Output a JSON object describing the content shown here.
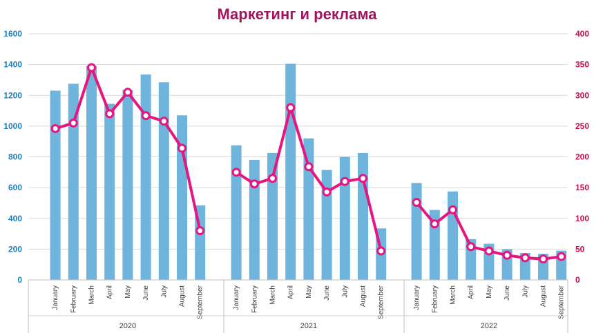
{
  "chart_data": {
    "type": "bar+line",
    "title": "Маркетинг и реклама",
    "colors": {
      "bar": "#6fb4dc",
      "line": "#e6157f",
      "title": "#a0155e",
      "left_axis": "#1f7fb8",
      "right_axis": "#c8104f",
      "grid": "#d9d9d9"
    },
    "groups": [
      {
        "year": "2020",
        "categories": [
          "January",
          "February",
          "March",
          "April",
          "May",
          "June",
          "July",
          "August",
          "September"
        ],
        "bar_values": [
          1230,
          1275,
          1390,
          1145,
          1235,
          1335,
          1285,
          1070,
          485
        ],
        "line_values": [
          246,
          255,
          345,
          270,
          305,
          267,
          258,
          214,
          80
        ]
      },
      {
        "year": "2021",
        "categories": [
          "January",
          "February",
          "March",
          "April",
          "May",
          "June",
          "July",
          "August",
          "September"
        ],
        "bar_values": [
          875,
          780,
          825,
          1405,
          920,
          715,
          800,
          825,
          335
        ],
        "line_values": [
          175,
          156,
          165,
          280,
          184,
          143,
          160,
          165,
          47
        ]
      },
      {
        "year": "2022",
        "categories": [
          "January",
          "February",
          "March",
          "April",
          "May",
          "June",
          "July",
          "August",
          "September"
        ],
        "bar_values": [
          630,
          455,
          575,
          265,
          235,
          200,
          175,
          170,
          190
        ],
        "line_values": [
          126,
          91,
          114,
          54,
          47,
          40,
          36,
          34,
          38
        ]
      }
    ],
    "y_left": {
      "min": 0,
      "max": 1600,
      "ticks": [
        "0",
        "200",
        "400",
        "600",
        "800",
        "1000",
        "1200",
        "1400",
        "1600"
      ]
    },
    "y_right": {
      "min": 0,
      "max": 400,
      "ticks": [
        "0",
        "50",
        "100",
        "150",
        "200",
        "250",
        "300",
        "350",
        "400"
      ]
    },
    "grid": true,
    "legend": "none"
  }
}
